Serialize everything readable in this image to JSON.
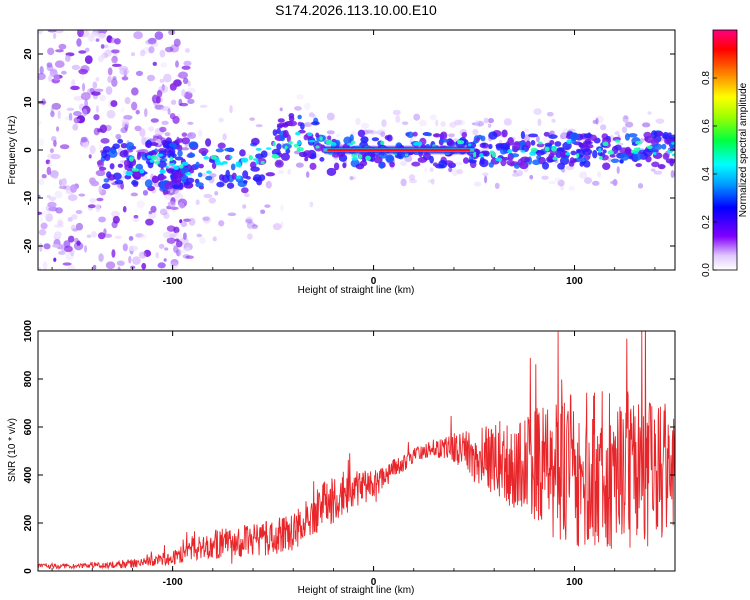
{
  "title": "S174.2026.113.10.00.E10",
  "colors": {
    "snr_line": "#e8262a",
    "spectrogram_base": "#7a1fe0"
  },
  "chart_data": [
    {
      "type": "heatmap",
      "name": "spectrogram",
      "xlabel": "Height of straight line (km)",
      "ylabel": "Frequency (Hz)",
      "xlim": [
        -167,
        150
      ],
      "ylim": [
        -25,
        25
      ],
      "xticks": [
        -100,
        0,
        100
      ],
      "yticks": [
        20,
        10,
        0,
        -10,
        -20
      ],
      "xtick_labels": [
        "-100",
        "0",
        "100"
      ],
      "ytick_labels": [
        "20",
        "10",
        "0",
        "-10",
        "-20"
      ],
      "colorbar": {
        "label": "Normalized spectral amplitude",
        "range": [
          0,
          1
        ],
        "ticks": [
          "0.0",
          "0.2",
          "0.4",
          "0.6",
          "0.8"
        ],
        "colormap": "rainbow"
      },
      "features": {
        "strong_band_x": [
          -25,
          50
        ],
        "strong_band_freq_hz": 0,
        "weak_band_x": [
          -135,
          150
        ],
        "scatter_region_x": [
          -167,
          -105
        ]
      }
    },
    {
      "type": "line",
      "name": "snr",
      "xlabel": "Height of straight line (km)",
      "ylabel": "SNR (10 * v/v)",
      "xlim": [
        -167,
        150
      ],
      "ylim": [
        0,
        1000
      ],
      "xticks": [
        -100,
        0,
        100
      ],
      "yticks": [
        0,
        200,
        400,
        600,
        800,
        1000
      ],
      "xtick_labels": [
        "-100",
        "0",
        "100"
      ],
      "ytick_labels": [
        "0",
        "200",
        "400",
        "600",
        "800",
        "1000"
      ],
      "series": [
        {
          "name": "SNR",
          "x": [
            -167,
            -150,
            -130,
            -115,
            -100,
            -90,
            -80,
            -70,
            -60,
            -50,
            -40,
            -30,
            -25,
            -20,
            -15,
            -10,
            -5,
            0,
            5,
            10,
            15,
            20,
            25,
            30,
            35,
            40,
            45,
            50,
            60,
            70,
            80,
            90,
            100,
            110,
            120,
            130,
            140,
            150
          ],
          "values": [
            20,
            20,
            25,
            35,
            55,
            90,
            110,
            120,
            130,
            140,
            160,
            230,
            280,
            300,
            320,
            330,
            350,
            360,
            380,
            430,
            450,
            480,
            500,
            510,
            510,
            515,
            500,
            480,
            470,
            450,
            440,
            430,
            420,
            420,
            420,
            420,
            420,
            410
          ],
          "noise_envelope": [
            10,
            10,
            15,
            20,
            30,
            45,
            60,
            65,
            70,
            75,
            80,
            90,
            100,
            100,
            100,
            80,
            70,
            60,
            50,
            40,
            35,
            30,
            30,
            35,
            45,
            60,
            80,
            110,
            150,
            200,
            250,
            300,
            320,
            330,
            330,
            320,
            300,
            280
          ]
        }
      ]
    }
  ]
}
